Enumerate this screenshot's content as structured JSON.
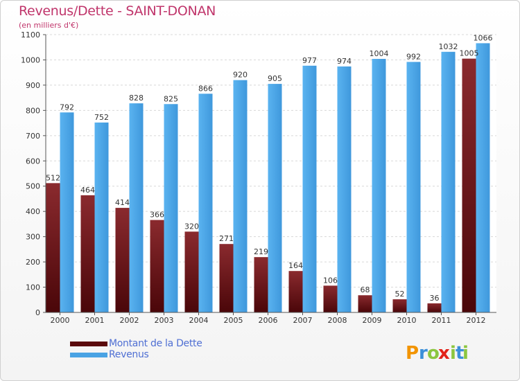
{
  "title": "Revenus/Dette - SAINT-DONAN",
  "subtitle": "(en milliers d'€)",
  "colors": {
    "dette": "#7a1a1e",
    "dette_dark": "#4a0609",
    "revenus": "#4aa3e4",
    "revenus_dark": "#2f7fc4",
    "legend_text": "#4f6fd3",
    "title": "#c0356b"
  },
  "chart_data": {
    "type": "bar",
    "categories": [
      "2000",
      "2001",
      "2002",
      "2003",
      "2004",
      "2005",
      "2006",
      "2007",
      "2008",
      "2009",
      "2010",
      "2011",
      "2012"
    ],
    "series": [
      {
        "name": "Montant de la Dette",
        "values": [
          512,
          464,
          414,
          366,
          320,
          271,
          219,
          164,
          106,
          68,
          52,
          36,
          1005
        ]
      },
      {
        "name": "Revenus",
        "values": [
          792,
          752,
          828,
          825,
          866,
          920,
          905,
          977,
          974,
          1004,
          992,
          1032,
          1066
        ]
      }
    ],
    "data_labels": {
      "dette": [
        "512",
        "464",
        "414",
        "366",
        "320",
        "271",
        "219",
        "164",
        "106",
        "68",
        "52",
        "36",
        "1005"
      ],
      "revenus": [
        "792",
        "752",
        "828",
        "825",
        "866",
        "920",
        "905",
        "977",
        "974",
        "1004",
        "992",
        "1032",
        "1066"
      ]
    },
    "yticks": [
      0,
      100,
      200,
      300,
      400,
      500,
      600,
      700,
      800,
      900,
      1000,
      1100
    ],
    "ylim": [
      0,
      1100
    ],
    "grid": true,
    "legend_placement": "bottom-left"
  },
  "legend": {
    "items": [
      {
        "label": "Montant de la Dette",
        "color": "#5a0a0d"
      },
      {
        "label": "Revenus",
        "color": "#4aa3e4"
      }
    ]
  },
  "logo": {
    "letters": [
      "P",
      "r",
      "o",
      "x",
      "i",
      "t",
      "i"
    ],
    "colors": [
      "#f29400",
      "#3b8fd9",
      "#8cc63f",
      "#e2231a",
      "#8cc63f",
      "#3b8fd9",
      "#8cc63f"
    ]
  }
}
